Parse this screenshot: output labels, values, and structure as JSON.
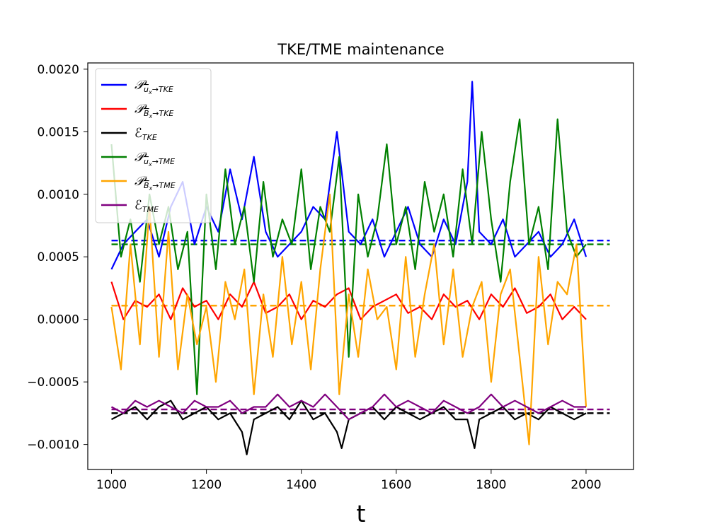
{
  "chart_data": {
    "type": "line",
    "title": "TKE/TME maintenance",
    "xlabel": "t",
    "ylabel": "",
    "xlim": [
      950,
      2100
    ],
    "ylim": [
      -0.0012,
      0.00205
    ],
    "xticks": [
      1000,
      1200,
      1400,
      1600,
      1800,
      2000
    ],
    "xtick_labels": [
      "1000",
      "1200",
      "1400",
      "1600",
      "1800",
      "2000"
    ],
    "yticks": [
      -0.001,
      -0.0005,
      0.0,
      0.0005,
      0.001,
      0.0015,
      0.002
    ],
    "ytick_labels": [
      "−0.0010",
      "−0.0005",
      "0.0000",
      "0.0005",
      "0.0010",
      "0.0015",
      "0.0020"
    ],
    "legend_position": "top-left",
    "grid": false,
    "series": [
      {
        "key": "P_u_TKE",
        "legend": {
          "sym": "𝒫",
          "main": "u",
          "main_bar": true,
          "sub": "x",
          "tail": "→TKE"
        },
        "color": "#0000ff",
        "mean": 0.00063,
        "mean_color": "#0000ff",
        "x": [
          1000,
          1025,
          1050,
          1075,
          1100,
          1125,
          1150,
          1175,
          1200,
          1225,
          1250,
          1275,
          1300,
          1325,
          1350,
          1375,
          1400,
          1425,
          1450,
          1475,
          1500,
          1525,
          1550,
          1575,
          1600,
          1625,
          1650,
          1675,
          1700,
          1725,
          1750,
          1760,
          1775,
          1800,
          1825,
          1850,
          1875,
          1900,
          1925,
          1950,
          1975,
          2000
        ],
        "y": [
          0.0004,
          0.0006,
          0.0007,
          0.0008,
          0.0005,
          0.0009,
          0.0011,
          0.0006,
          0.0009,
          0.0007,
          0.0012,
          0.0008,
          0.0013,
          0.0007,
          0.0005,
          0.0006,
          0.0007,
          0.0009,
          0.0008,
          0.0015,
          0.0007,
          0.0006,
          0.0008,
          0.0005,
          0.0007,
          0.0009,
          0.0006,
          0.0005,
          0.0008,
          0.0006,
          0.0011,
          0.0019,
          0.0007,
          0.0006,
          0.0008,
          0.0005,
          0.0006,
          0.0007,
          0.0005,
          0.0006,
          0.0008,
          0.0005
        ]
      },
      {
        "key": "P_B_TKE",
        "legend": {
          "sym": "𝒫",
          "main": "B",
          "main_bar": true,
          "sub": "x",
          "tail": "→TKE"
        },
        "color": "#ff0000",
        "mean": 0.00011,
        "mean_color": "#ff7f0e",
        "x": [
          1000,
          1025,
          1050,
          1075,
          1100,
          1125,
          1150,
          1175,
          1200,
          1225,
          1250,
          1275,
          1300,
          1325,
          1350,
          1375,
          1400,
          1425,
          1450,
          1475,
          1500,
          1525,
          1550,
          1575,
          1600,
          1625,
          1650,
          1675,
          1700,
          1725,
          1750,
          1775,
          1800,
          1825,
          1850,
          1875,
          1900,
          1925,
          1950,
          1975,
          2000
        ],
        "y": [
          0.0003,
          0.0,
          0.00015,
          0.0001,
          0.0002,
          0.0,
          0.00025,
          0.0001,
          0.00015,
          0.0,
          0.0002,
          0.0001,
          0.0003,
          5e-05,
          0.0001,
          0.0002,
          0.0,
          0.00015,
          0.0001,
          0.0002,
          0.00025,
          0.0,
          0.0001,
          0.00015,
          0.0002,
          5e-05,
          0.0001,
          0.0,
          0.0002,
          0.0001,
          0.00015,
          0.0,
          0.0002,
          0.0001,
          0.00025,
          5e-05,
          0.0001,
          0.0002,
          0.0,
          0.0001,
          0.0
        ]
      },
      {
        "key": "E_TKE",
        "legend": {
          "sym": "ℰ",
          "main": "",
          "main_bar": false,
          "sub": "TKE",
          "tail": ""
        },
        "color": "#000000",
        "mean": -0.00075,
        "mean_color": "#000000",
        "x": [
          1000,
          1025,
          1050,
          1075,
          1100,
          1125,
          1150,
          1175,
          1200,
          1225,
          1250,
          1275,
          1285,
          1300,
          1325,
          1350,
          1375,
          1400,
          1425,
          1450,
          1475,
          1485,
          1500,
          1525,
          1550,
          1575,
          1600,
          1625,
          1650,
          1675,
          1700,
          1725,
          1750,
          1765,
          1775,
          1800,
          1825,
          1850,
          1875,
          1900,
          1925,
          1950,
          1975,
          2000
        ],
        "y": [
          -0.0008,
          -0.00075,
          -0.0007,
          -0.0008,
          -0.0007,
          -0.00065,
          -0.0008,
          -0.00075,
          -0.0007,
          -0.0008,
          -0.00075,
          -0.0009,
          -0.00108,
          -0.0008,
          -0.00075,
          -0.0007,
          -0.0008,
          -0.00065,
          -0.0008,
          -0.00075,
          -0.0009,
          -0.00103,
          -0.0008,
          -0.00075,
          -0.0007,
          -0.0008,
          -0.0007,
          -0.00075,
          -0.0008,
          -0.00075,
          -0.0007,
          -0.0008,
          -0.0008,
          -0.00103,
          -0.0008,
          -0.00075,
          -0.0007,
          -0.0008,
          -0.00075,
          -0.0008,
          -0.0007,
          -0.00075,
          -0.0008,
          -0.00075
        ]
      },
      {
        "key": "P_u_TME",
        "legend": {
          "sym": "𝒫",
          "main": "u",
          "main_bar": true,
          "sub": "x",
          "tail": "→TME"
        },
        "color": "#008000",
        "mean": 0.0006,
        "mean_color": "#008000",
        "x": [
          1000,
          1020,
          1040,
          1060,
          1080,
          1100,
          1120,
          1140,
          1160,
          1180,
          1200,
          1220,
          1240,
          1260,
          1280,
          1300,
          1320,
          1340,
          1360,
          1380,
          1400,
          1420,
          1440,
          1460,
          1480,
          1500,
          1520,
          1540,
          1560,
          1580,
          1600,
          1620,
          1640,
          1660,
          1680,
          1700,
          1720,
          1740,
          1760,
          1780,
          1800,
          1820,
          1840,
          1860,
          1880,
          1900,
          1920,
          1940,
          1960,
          1980,
          2000
        ],
        "y": [
          0.0014,
          0.0005,
          0.0008,
          0.0003,
          0.001,
          0.0006,
          0.0009,
          0.0004,
          0.0007,
          -0.0006,
          0.001,
          0.0004,
          0.0012,
          0.0006,
          0.0009,
          0.0003,
          0.0011,
          0.0005,
          0.0008,
          0.0006,
          0.0012,
          0.0004,
          0.0009,
          0.0007,
          0.0013,
          -0.0003,
          0.001,
          0.0005,
          0.0008,
          0.0014,
          0.0006,
          0.0009,
          0.0004,
          0.0011,
          0.0007,
          0.001,
          0.0005,
          0.0012,
          0.0006,
          0.0015,
          0.0008,
          0.0003,
          0.0011,
          0.0016,
          0.0006,
          0.0009,
          0.0004,
          0.0016,
          0.0007,
          0.0005,
          0.0006
        ]
      },
      {
        "key": "P_B_TME",
        "legend": {
          "sym": "𝒫",
          "main": "B",
          "main_bar": true,
          "sub": "x",
          "tail": "→TME"
        },
        "color": "#ffa500",
        "mean": 0.00011,
        "mean_color": "#ffa500",
        "x": [
          1000,
          1020,
          1040,
          1060,
          1080,
          1100,
          1120,
          1140,
          1160,
          1180,
          1200,
          1220,
          1240,
          1260,
          1280,
          1300,
          1320,
          1340,
          1360,
          1380,
          1400,
          1420,
          1440,
          1460,
          1480,
          1500,
          1520,
          1540,
          1560,
          1580,
          1600,
          1620,
          1640,
          1660,
          1680,
          1700,
          1720,
          1740,
          1760,
          1780,
          1800,
          1820,
          1840,
          1860,
          1880,
          1900,
          1920,
          1940,
          1960,
          1980,
          2000
        ],
        "y": [
          0.0001,
          -0.0004,
          0.0006,
          -0.0002,
          0.0009,
          -0.0003,
          0.0007,
          -0.0004,
          0.0002,
          -0.0002,
          0.0001,
          -0.0005,
          0.0003,
          0.0,
          0.0004,
          -0.0006,
          0.0002,
          -0.0003,
          0.0005,
          -0.0002,
          0.0003,
          -0.0004,
          0.0004,
          0.001,
          -0.0006,
          0.0002,
          -0.0003,
          0.0004,
          0.0,
          0.0001,
          -0.0004,
          0.0005,
          -0.0003,
          0.0002,
          0.0006,
          -0.0002,
          0.0004,
          -0.0003,
          0.0001,
          0.0003,
          -0.0005,
          0.0002,
          0.0004,
          -0.0003,
          -0.001,
          0.0005,
          -0.0002,
          0.0003,
          0.0002,
          0.0006,
          -0.0007
        ]
      },
      {
        "key": "E_TME",
        "legend": {
          "sym": "ℰ",
          "main": "",
          "main_bar": false,
          "sub": "TME",
          "tail": ""
        },
        "color": "#800080",
        "mean": -0.00072,
        "mean_color": "#800080",
        "x": [
          1000,
          1025,
          1050,
          1075,
          1100,
          1125,
          1150,
          1175,
          1200,
          1225,
          1250,
          1275,
          1300,
          1325,
          1350,
          1375,
          1400,
          1425,
          1450,
          1475,
          1500,
          1525,
          1550,
          1575,
          1600,
          1625,
          1650,
          1675,
          1700,
          1725,
          1750,
          1775,
          1800,
          1825,
          1850,
          1875,
          1900,
          1925,
          1950,
          1975,
          2000
        ],
        "y": [
          -0.0007,
          -0.00075,
          -0.00065,
          -0.0007,
          -0.00065,
          -0.0007,
          -0.00075,
          -0.00065,
          -0.0007,
          -0.0007,
          -0.00065,
          -0.00075,
          -0.0007,
          -0.0007,
          -0.0006,
          -0.0007,
          -0.00065,
          -0.0007,
          -0.0006,
          -0.0007,
          -0.0008,
          -0.00075,
          -0.0007,
          -0.0006,
          -0.0007,
          -0.00065,
          -0.0007,
          -0.00075,
          -0.00065,
          -0.0007,
          -0.00075,
          -0.0007,
          -0.0006,
          -0.0007,
          -0.00065,
          -0.0007,
          -0.00075,
          -0.0007,
          -0.00065,
          -0.0007,
          -0.0007
        ]
      }
    ]
  }
}
